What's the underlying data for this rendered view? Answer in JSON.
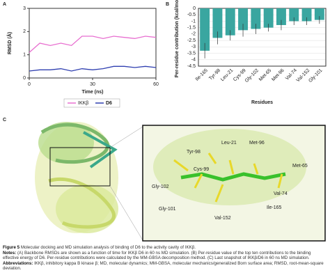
{
  "chart_data": [
    {
      "type": "line",
      "panel": "A",
      "ylabel": "RMSD (Å)",
      "xlabel": "Time (ns)",
      "x": [
        0,
        5,
        10,
        15,
        20,
        25,
        30,
        35,
        40,
        45,
        50,
        55,
        60
      ],
      "series": [
        {
          "name": "IKKβ",
          "color": "#e86fd0",
          "values": [
            1.1,
            1.5,
            1.4,
            1.5,
            1.4,
            1.8,
            1.8,
            1.7,
            1.8,
            1.75,
            1.7,
            1.8,
            1.75
          ]
        },
        {
          "name": "D6",
          "color": "#2f3fb0",
          "values": [
            0.3,
            0.35,
            0.35,
            0.4,
            0.3,
            0.4,
            0.35,
            0.4,
            0.5,
            0.5,
            0.45,
            0.5,
            0.45
          ]
        }
      ],
      "xlim": [
        0,
        60
      ],
      "xticks": [
        0,
        30,
        60
      ],
      "ylim": [
        0,
        3
      ],
      "yticks": [
        0,
        1,
        2,
        3
      ]
    },
    {
      "type": "bar",
      "panel": "B",
      "ylabel": "Per-residue contribution (kcal/mol)",
      "xlabel": "Residues",
      "categories": [
        "Ile-165",
        "Tyr-98",
        "Leu-21",
        "Cys-99",
        "Gly-102",
        "Met-65",
        "Met-96",
        "Val-74",
        "Val-152",
        "Gly-101"
      ],
      "values": [
        -3.3,
        -2.3,
        -2.1,
        -1.7,
        -1.6,
        -1.5,
        -1.3,
        -1.0,
        -1.0,
        -0.9
      ],
      "errors": [
        0.6,
        0.5,
        0.4,
        0.5,
        0.4,
        0.3,
        0.4,
        0.3,
        0.3,
        0.3
      ],
      "color": "#3aa6a0",
      "ylim": [
        -4.5,
        0
      ],
      "yticks": [
        0,
        -0.5,
        -1,
        -1.5,
        -2,
        -2.5,
        -3,
        -3.5,
        -4,
        -4.5
      ],
      "grid": true
    }
  ],
  "panel_c": {
    "panel": "C",
    "labels": [
      "Leu-21",
      "Met-96",
      "Tyr-98",
      "Cys-99",
      "Met-65",
      "Gly-102",
      "Val-74",
      "Gly-101",
      "Ile-165",
      "Val-152"
    ]
  },
  "caption": {
    "figure_label": "Figure 5",
    "title": "Molecular docking and MD simulation analysis of binding of D6 to the activity cavity of IKKβ.",
    "notes_label": "Notes:",
    "notes": "(A) Backbone RMSDs are shown as a function of time for IKKβ D6 in 60 ns MD simulation. (B) Per-residue value of the top ten contributions to the binding effective energy of D6. Per-residue contributions were calculated by the MM-GBSA decomposition method. (C) Last snapshot of IKKβ/D6 in 60 ns MD simulation.",
    "abbr_label": "Abbreviations:",
    "abbr": "IKKβ, inhibitory kappa B kinase β; MD, molecular dynamics; MM-GBSA, molecular mechanics/generalized Born surface area; RMSD, root-mean-square deviation."
  }
}
